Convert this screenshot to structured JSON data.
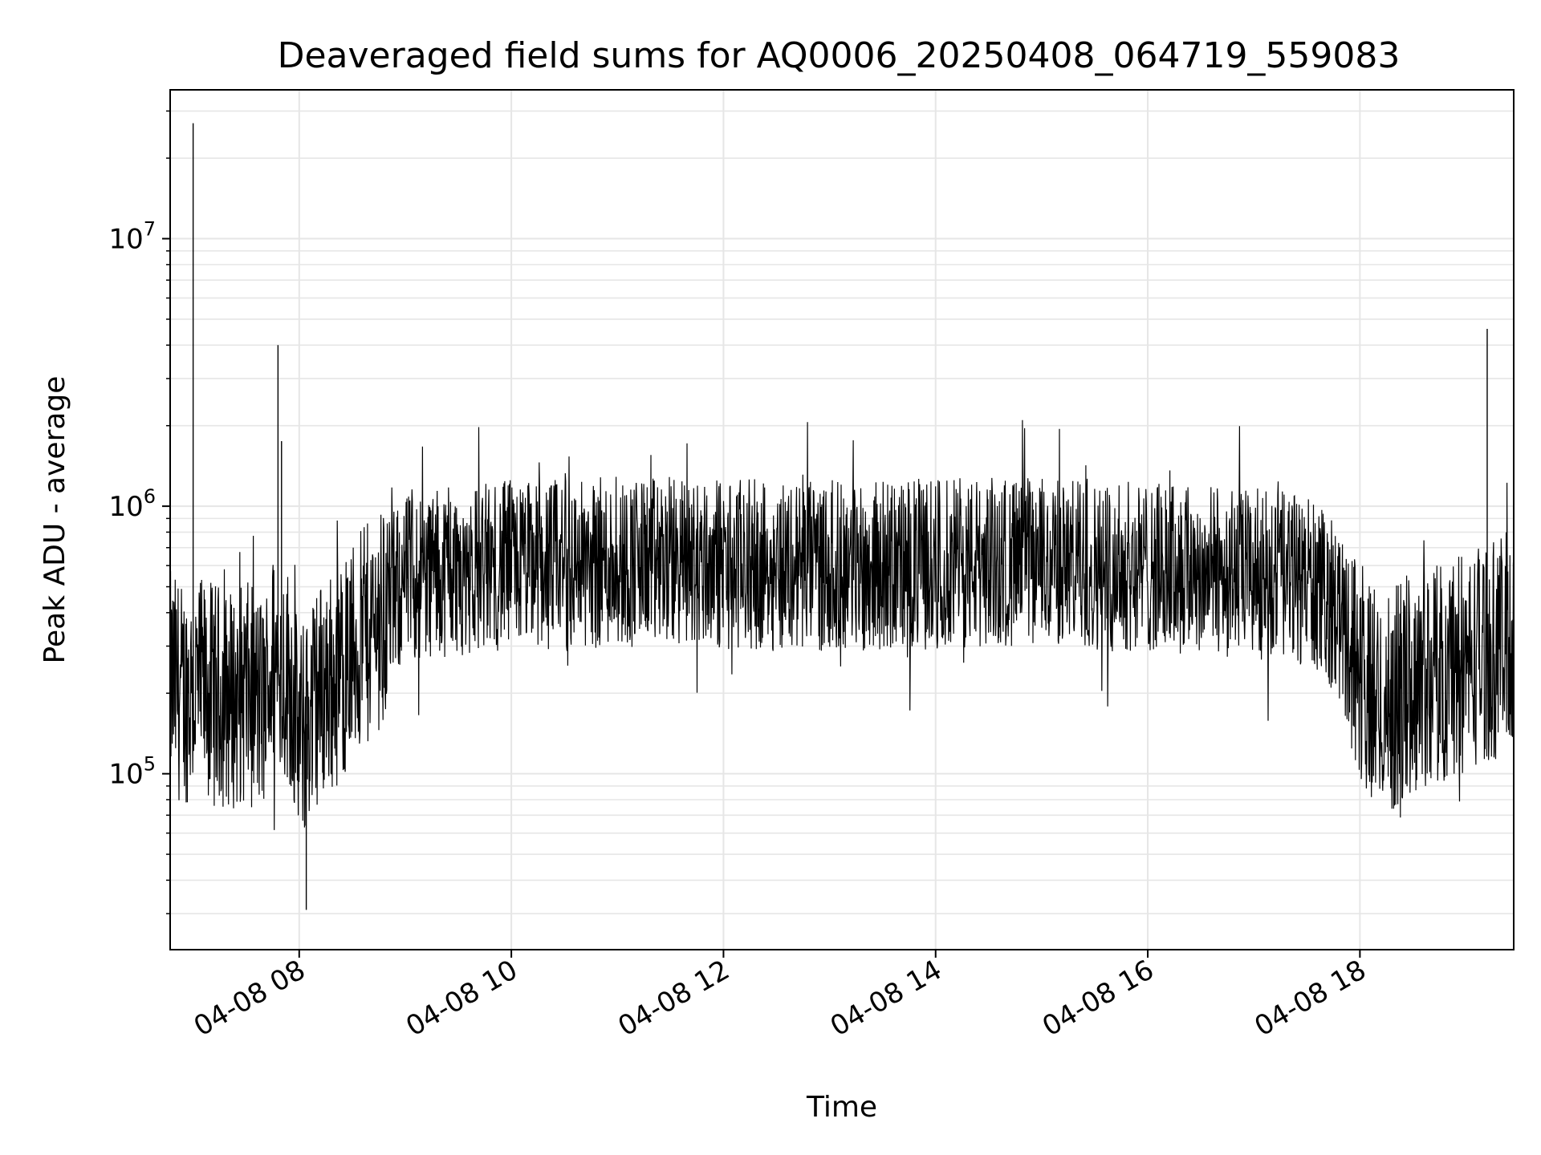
{
  "chart_data": {
    "type": "line",
    "title": "Deaveraged field sums for AQ0006_20250408_064719_559083",
    "xlabel": "Time",
    "ylabel": "Peak ADU - average",
    "x_range": [
      "04-08 06:47",
      "04-08 19:27"
    ],
    "y_scale": "log",
    "ylim": [
      22000,
      36000000
    ],
    "grid": true,
    "line_color": "#000000",
    "grid_color": "#e6e6e6",
    "x_ticks": [
      {
        "time": "04-08 08:00",
        "label": "04-08 08"
      },
      {
        "time": "04-08 10:00",
        "label": "04-08 10"
      },
      {
        "time": "04-08 12:00",
        "label": "04-08 12"
      },
      {
        "time": "04-08 14:00",
        "label": "04-08 14"
      },
      {
        "time": "04-08 16:00",
        "label": "04-08 16"
      },
      {
        "time": "04-08 18:00",
        "label": "04-08 18"
      }
    ],
    "y_ticks": [
      {
        "value": 100000,
        "base": "10",
        "exp": "5"
      },
      {
        "value": 1000000,
        "base": "10",
        "exp": "6"
      },
      {
        "value": 10000000,
        "base": "10",
        "exp": "7"
      }
    ],
    "series": [
      {
        "x": [
          "04-08 06:47",
          "04-08 06:55",
          "04-08 07:00",
          "04-08 07:10",
          "04-08 07:20",
          "04-08 07:30",
          "04-08 07:40",
          "04-08 07:45",
          "04-08 07:55",
          "04-08 08:00",
          "04-08 08:05",
          "04-08 08:10",
          "04-08 08:20",
          "04-08 08:30",
          "04-08 08:40",
          "04-08 08:50",
          "04-08 09:00",
          "04-08 09:15",
          "04-08 09:30",
          "04-08 09:45",
          "04-08 10:00",
          "04-08 10:30",
          "04-08 11:00",
          "04-08 11:30",
          "04-08 12:00",
          "04-08 12:30",
          "04-08 13:00",
          "04-08 13:30",
          "04-08 14:00",
          "04-08 14:30",
          "04-08 15:00",
          "04-08 15:30",
          "04-08 16:00",
          "04-08 16:30",
          "04-08 17:00",
          "04-08 17:30",
          "04-08 17:45",
          "04-08 17:55",
          "04-08 18:05",
          "04-08 18:15",
          "04-08 18:30",
          "04-08 18:45",
          "04-08 19:00",
          "04-08 19:10",
          "04-08 19:20",
          "04-08 19:27"
        ],
        "y": [
          220000,
          200000,
          210000,
          200000,
          190000,
          200000,
          180000,
          260000,
          230000,
          130000,
          160000,
          200000,
          230000,
          280000,
          340000,
          420000,
          540000,
          560000,
          580000,
          590000,
          600000,
          610000,
          620000,
          620000,
          610000,
          600000,
          600000,
          600000,
          610000,
          620000,
          620000,
          600000,
          590000,
          580000,
          560000,
          530000,
          430000,
          300000,
          200000,
          180000,
          220000,
          240000,
          260000,
          290000,
          300000,
          310000
        ]
      }
    ],
    "spikes": [
      {
        "x": "04-08 07:00",
        "y": 27000000
      },
      {
        "x": "04-08 07:48",
        "y": 4000000
      },
      {
        "x": "04-08 07:50",
        "y": 1750000
      },
      {
        "x": "04-08 19:12",
        "y": 4600000
      },
      {
        "x": "04-08 08:04",
        "y": 31000
      }
    ]
  }
}
